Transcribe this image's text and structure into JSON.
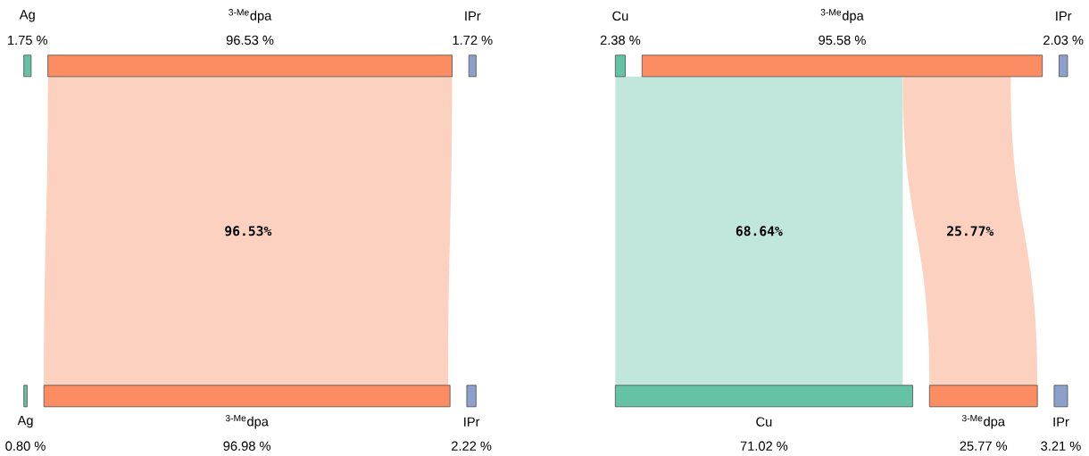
{
  "chart_data": [
    {
      "type": "other",
      "categories": [
        "Ag",
        "$^{3-Me}$dpa",
        "IPr"
      ],
      "colors": [
        "#66c2a5",
        "#fc8d62",
        "#8da0cb"
      ],
      "series": [
        {
          "values": [
            1.75,
            96.53,
            1.72
          ],
          "value_labels": [
            "1.75 %",
            "96.53 %",
            "1.72 %"
          ]
        },
        {
          "values": [
            0.8,
            96.98,
            2.22
          ],
          "value_labels": [
            "0.80 %",
            "96.98 %",
            "2.22 %"
          ]
        },
        {
          "values": [
            null,
            96.53,
            null
          ],
          "value_labels": [
            null,
            "96.53%",
            null
          ],
          "colors": [
            null,
            "#fdd1c0",
            null
          ]
        }
      ]
    },
    {
      "type": "other",
      "categories": [
        "Cu",
        "$^{3-Me}$dpa",
        "IPr"
      ],
      "colors": [
        "#66c2a5",
        "#fc8d62",
        "#8da0cb"
      ],
      "series": [
        {
          "values": [
            2.38,
            95.58,
            2.03
          ],
          "value_labels": [
            "2.38 %",
            "95.58 %",
            "2.03 %"
          ]
        },
        {
          "values": [
            71.02,
            25.77,
            3.21
          ],
          "value_labels": [
            "71.02 %",
            "25.77 %",
            "3.21 %"
          ]
        },
        {
          "values": [
            68.64,
            25.77,
            null
          ],
          "value_labels": [
            "68.64%",
            "25.77%",
            null
          ],
          "colors": [
            "#c1e7dc",
            "#fdd1c0",
            null
          ]
        }
      ]
    }
  ]
}
